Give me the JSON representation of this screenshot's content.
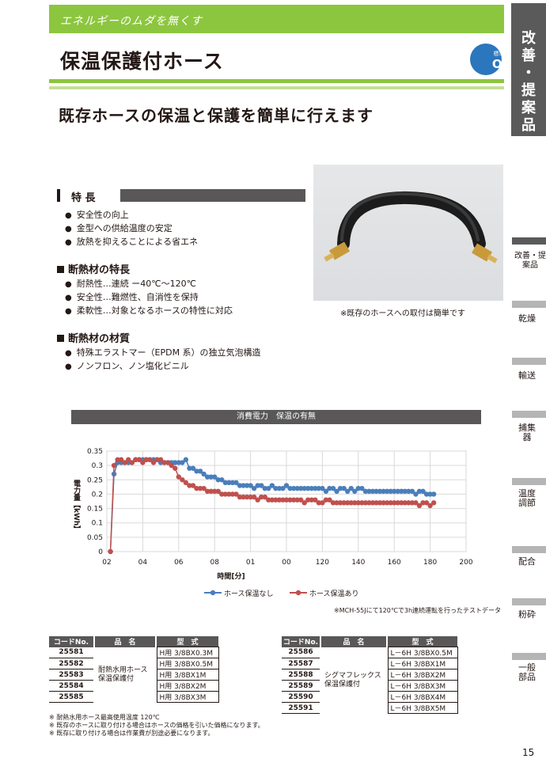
{
  "header": {
    "tagline": "エネルギーのムダを無くす",
    "title": "保温保護付ホース",
    "subtitle": "既存ホースの保温と保護を簡単に行えます"
  },
  "badge": {
    "line1": "標準外",
    "line2": "OK"
  },
  "side_nav": {
    "main_label_chars": [
      "改",
      "善",
      "・",
      "提",
      "案",
      "品"
    ],
    "items": [
      {
        "label": "改善・提案品",
        "active": true
      },
      {
        "label": "乾燥",
        "active": false
      },
      {
        "label": "輸送",
        "active": false
      },
      {
        "label": "捕集器",
        "active": false
      },
      {
        "label": "温度調節",
        "active": false
      },
      {
        "label": "配合",
        "active": false
      },
      {
        "label": "粉砕",
        "active": false
      },
      {
        "label": "一般部品",
        "active": false
      }
    ]
  },
  "features": {
    "heading": "特 長",
    "items": [
      "安全性の向上",
      "金型への供給温度の安定",
      "放熱を抑えることによる省エネ"
    ]
  },
  "insulation_features": {
    "heading": "断熱材の特長",
    "items": [
      "耐熱性…連続 ー40℃～120℃",
      "安全性…難燃性、自消性を保持",
      "柔軟性…対象となるホースの特性に対応"
    ]
  },
  "insulation_material": {
    "heading": "断熱材の材質",
    "items": [
      "特殊エラストマー（EPDM 系）の独立気泡構造",
      "ノンフロン、ノン塩化ビニル"
    ]
  },
  "photo": {
    "caption": "※既存のホースへの取付は簡単です"
  },
  "chart_data": {
    "type": "line",
    "title": "消費電力　保温の有無",
    "xlabel": "時間[分]",
    "ylabel": "電力量【kWh】",
    "x_tick_labels": [
      "02",
      "04",
      "06",
      "08",
      "01",
      "00",
      "120",
      "140",
      "160",
      "180",
      "200"
    ],
    "xlim": [
      0,
      200
    ],
    "ylim": [
      0,
      0.35
    ],
    "y_ticks": [
      0,
      0.05,
      0.1,
      0.15,
      0.2,
      0.25,
      0.3,
      0.35
    ],
    "grid": true,
    "legend_position": "bottom",
    "series": [
      {
        "name": "ホース保温なし",
        "color": "#4a7ebb",
        "x": [
          2,
          4,
          6,
          8,
          10,
          12,
          14,
          16,
          18,
          20,
          22,
          24,
          26,
          28,
          30,
          32,
          34,
          36,
          38,
          40,
          42,
          44,
          46,
          48,
          50,
          52,
          54,
          56,
          58,
          60,
          62,
          64,
          66,
          68,
          70,
          72,
          74,
          76,
          78,
          80,
          82,
          84,
          86,
          88,
          90,
          92,
          94,
          96,
          98,
          100,
          102,
          104,
          106,
          108,
          110,
          112,
          114,
          116,
          118,
          120,
          122,
          124,
          126,
          128,
          130,
          132,
          134,
          136,
          138,
          140,
          142,
          144,
          146,
          148,
          150,
          152,
          154,
          156,
          158,
          160,
          162,
          164,
          166,
          168,
          170,
          172,
          174,
          176,
          178,
          180,
          182
        ],
        "y": [
          0,
          0.27,
          0.31,
          0.31,
          0.31,
          0.31,
          0.31,
          0.32,
          0.32,
          0.32,
          0.32,
          0.32,
          0.32,
          0.32,
          0.31,
          0.31,
          0.31,
          0.31,
          0.31,
          0.31,
          0.31,
          0.32,
          0.29,
          0.29,
          0.28,
          0.28,
          0.27,
          0.26,
          0.26,
          0.26,
          0.25,
          0.25,
          0.24,
          0.24,
          0.24,
          0.24,
          0.23,
          0.23,
          0.23,
          0.23,
          0.22,
          0.23,
          0.23,
          0.22,
          0.22,
          0.23,
          0.22,
          0.22,
          0.22,
          0.23,
          0.22,
          0.22,
          0.22,
          0.22,
          0.22,
          0.22,
          0.22,
          0.22,
          0.22,
          0.22,
          0.21,
          0.22,
          0.22,
          0.21,
          0.22,
          0.22,
          0.21,
          0.22,
          0.21,
          0.22,
          0.22,
          0.21,
          0.21,
          0.21,
          0.21,
          0.21,
          0.21,
          0.21,
          0.21,
          0.21,
          0.21,
          0.21,
          0.21,
          0.21,
          0.21,
          0.2,
          0.21,
          0.21,
          0.2,
          0.2,
          0.2
        ]
      },
      {
        "name": "ホース保温あり",
        "color": "#c0504d",
        "x": [
          2,
          4,
          6,
          8,
          10,
          12,
          14,
          16,
          18,
          20,
          22,
          24,
          26,
          28,
          30,
          32,
          34,
          36,
          38,
          40,
          42,
          44,
          46,
          48,
          50,
          52,
          54,
          56,
          58,
          60,
          62,
          64,
          66,
          68,
          70,
          72,
          74,
          76,
          78,
          80,
          82,
          84,
          86,
          88,
          90,
          92,
          94,
          96,
          98,
          100,
          102,
          104,
          106,
          108,
          110,
          112,
          114,
          116,
          118,
          120,
          122,
          124,
          126,
          128,
          130,
          132,
          134,
          136,
          138,
          140,
          142,
          144,
          146,
          148,
          150,
          152,
          154,
          156,
          158,
          160,
          162,
          164,
          166,
          168,
          170,
          172,
          174,
          176,
          178,
          180,
          182
        ],
        "y": [
          0,
          0.3,
          0.32,
          0.32,
          0.31,
          0.32,
          0.31,
          0.32,
          0.32,
          0.31,
          0.32,
          0.32,
          0.31,
          0.32,
          0.32,
          0.31,
          0.31,
          0.3,
          0.29,
          0.26,
          0.25,
          0.24,
          0.23,
          0.23,
          0.22,
          0.22,
          0.22,
          0.21,
          0.21,
          0.21,
          0.21,
          0.2,
          0.2,
          0.2,
          0.2,
          0.2,
          0.19,
          0.19,
          0.19,
          0.19,
          0.19,
          0.18,
          0.19,
          0.19,
          0.18,
          0.18,
          0.18,
          0.18,
          0.18,
          0.18,
          0.18,
          0.18,
          0.18,
          0.18,
          0.17,
          0.18,
          0.18,
          0.18,
          0.17,
          0.17,
          0.18,
          0.18,
          0.17,
          0.17,
          0.17,
          0.17,
          0.17,
          0.17,
          0.17,
          0.17,
          0.17,
          0.17,
          0.17,
          0.17,
          0.17,
          0.17,
          0.17,
          0.17,
          0.17,
          0.17,
          0.17,
          0.17,
          0.17,
          0.17,
          0.17,
          0.17,
          0.16,
          0.17,
          0.17,
          0.16,
          0.17
        ]
      }
    ]
  },
  "test_note": "※MCH-55Jにて120℃で3h連続運転を行ったテストデータ",
  "table_headers": {
    "code": "コードNo.",
    "name": "品　名",
    "spec": "型　式"
  },
  "table1": {
    "name": [
      "耐熱水用ホース",
      "保温保護付"
    ],
    "rows": [
      {
        "code": "25581",
        "spec": "H用  3/8BX0.3M"
      },
      {
        "code": "25582",
        "spec": "H用  3/8BX0.5M"
      },
      {
        "code": "25583",
        "spec": "H用  3/8BX1M"
      },
      {
        "code": "25584",
        "spec": "H用  3/8BX2M"
      },
      {
        "code": "25585",
        "spec": "H用  3/8BX3M"
      }
    ]
  },
  "table2": {
    "name": [
      "シグマフレックス",
      "保温保護付"
    ],
    "rows": [
      {
        "code": "25586",
        "spec": "L－6H 3/8BX0.5M"
      },
      {
        "code": "25587",
        "spec": "L－6H 3/8BX1M"
      },
      {
        "code": "25588",
        "spec": "L－6H 3/8BX2M"
      },
      {
        "code": "25589",
        "spec": "L－6H 3/8BX3M"
      },
      {
        "code": "25590",
        "spec": "L－6H 3/8BX4M"
      },
      {
        "code": "25591",
        "spec": "L－6H 3/8BX5M"
      }
    ]
  },
  "footnotes": [
    "※ 耐熱水用ホース最高使用温度 120℃",
    "※ 既存のホースに取り付ける場合はホースの価格を引いた価格になります。",
    "※ 既存に取り付ける場合は作業費が別途必要になります。"
  ],
  "page_number": "15"
}
